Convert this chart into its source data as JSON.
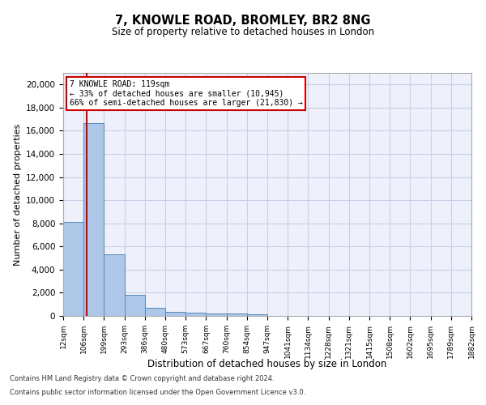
{
  "title1": "7, KNOWLE ROAD, BROMLEY, BR2 8NG",
  "title2": "Size of property relative to detached houses in London",
  "xlabel": "Distribution of detached houses by size in London",
  "ylabel": "Number of detached properties",
  "bin_labels": [
    "12sqm",
    "106sqm",
    "199sqm",
    "293sqm",
    "386sqm",
    "480sqm",
    "573sqm",
    "667sqm",
    "760sqm",
    "854sqm",
    "947sqm",
    "1041sqm",
    "1134sqm",
    "1228sqm",
    "1321sqm",
    "1415sqm",
    "1508sqm",
    "1602sqm",
    "1695sqm",
    "1789sqm",
    "1882sqm"
  ],
  "bar_heights": [
    8100,
    16650,
    5300,
    1850,
    700,
    370,
    280,
    220,
    180,
    130,
    0,
    0,
    0,
    0,
    0,
    0,
    0,
    0,
    0,
    0
  ],
  "bar_color": "#aec6e8",
  "bar_edge_color": "#5588bb",
  "annotation_text_line1": "7 KNOWLE ROAD: 119sqm",
  "annotation_text_line2": "← 33% of detached houses are smaller (10,945)",
  "annotation_text_line3": "66% of semi-detached houses are larger (21,830) →",
  "ylim": [
    0,
    21000
  ],
  "yticks": [
    0,
    2000,
    4000,
    6000,
    8000,
    10000,
    12000,
    14000,
    16000,
    18000,
    20000
  ],
  "red_line_color": "#cc0000",
  "annotation_box_color": "#ffffff",
  "annotation_box_edge": "#cc0000",
  "grid_color": "#c8cfe8",
  "bg_color": "#eef1fb",
  "footer1": "Contains HM Land Registry data © Crown copyright and database right 2024.",
  "footer2": "Contains public sector information licensed under the Open Government Licence v3.0."
}
